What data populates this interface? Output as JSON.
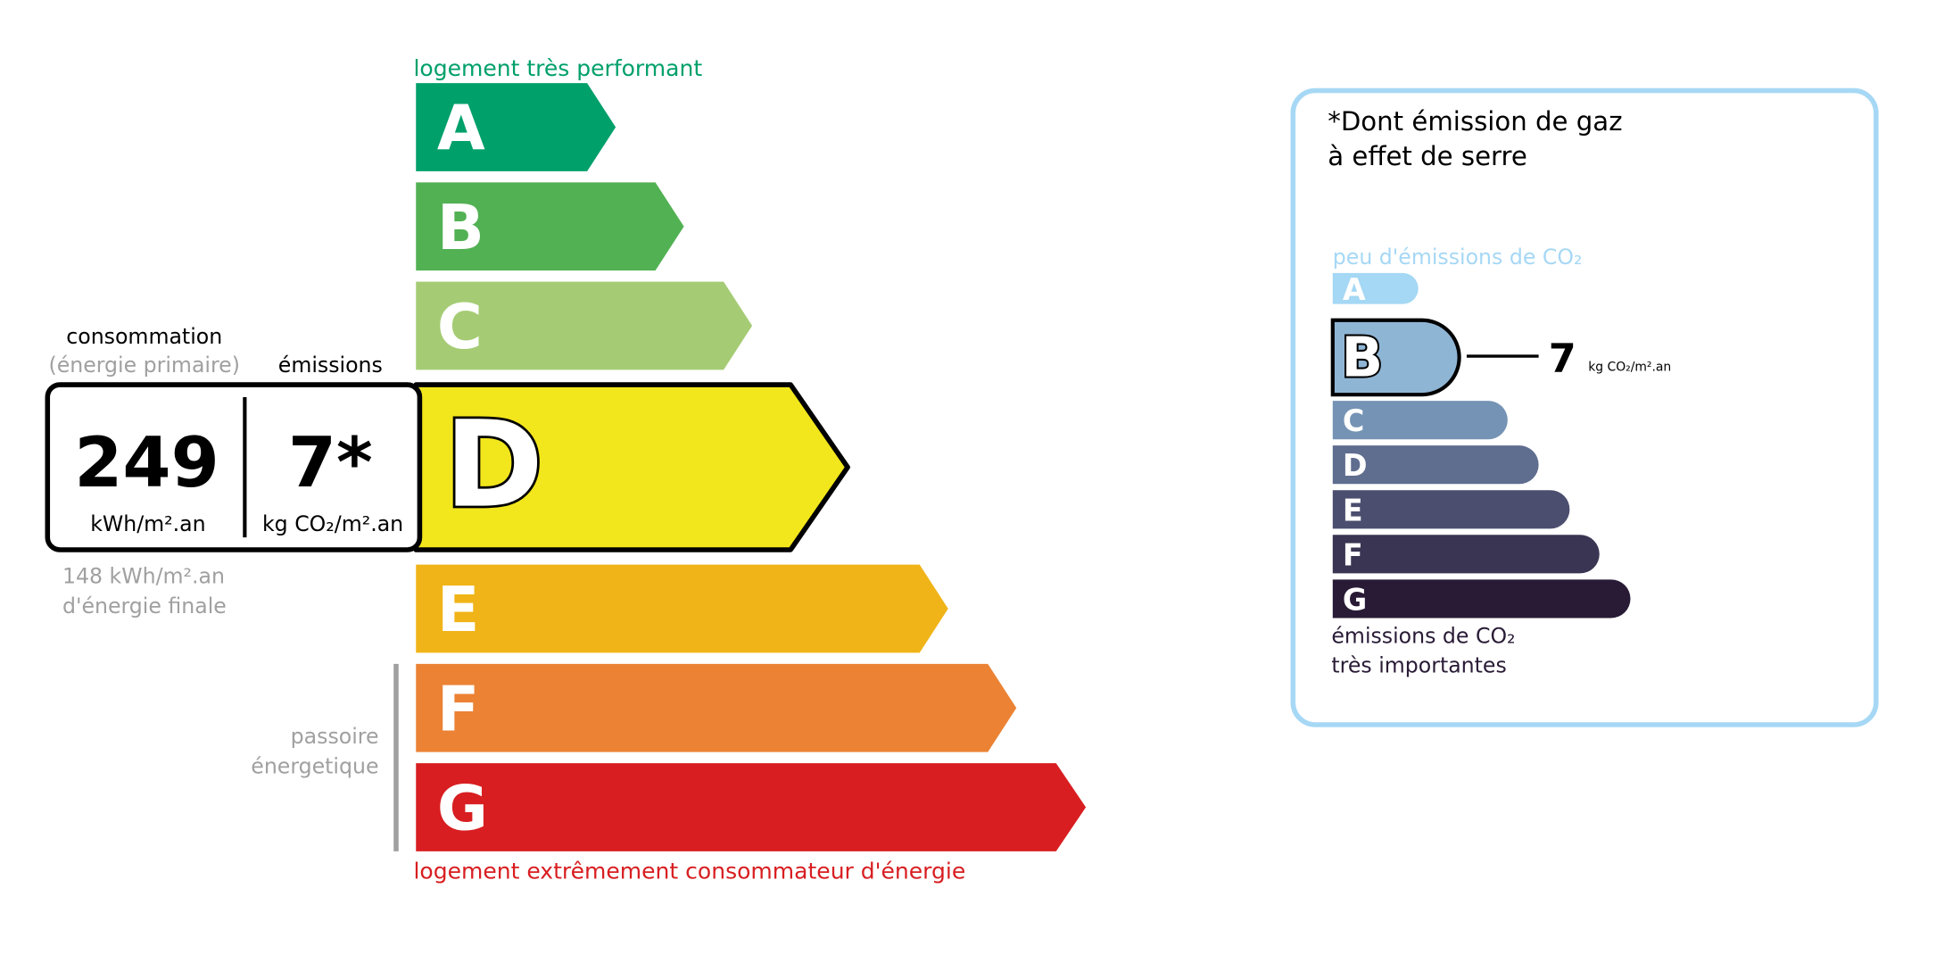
{
  "energy_label": {
    "top_label": "logement très performant",
    "bottom_label": "logement extrêmement consommateur d'énergie",
    "passoire_line1": "passoire",
    "passoire_line2": "énergetique",
    "current_class": "D",
    "classes": [
      {
        "letter": "A",
        "color": "#00a06a"
      },
      {
        "letter": "B",
        "color": "#52b153"
      },
      {
        "letter": "C",
        "color": "#a5cc74"
      },
      {
        "letter": "D",
        "color": "#f2e61c"
      },
      {
        "letter": "E",
        "color": "#f0b418"
      },
      {
        "letter": "F",
        "color": "#eb8234"
      },
      {
        "letter": "G",
        "color": "#d81e21"
      }
    ],
    "consumption_header": "consommation",
    "consumption_subheader": "(énergie primaire)",
    "emissions_header": "émissions",
    "consumption_value": "249",
    "consumption_unit": "kWh/m².an",
    "emissions_value": "7*",
    "emissions_unit": "kg CO₂/m².an",
    "final_energy_value": "148 kWh/m².an",
    "final_energy_label": "d'énergie finale"
  },
  "ges_panel": {
    "title_line1": "*Dont émission de gaz",
    "title_line2": "à effet de serre",
    "top_label": "peu d'émissions de CO₂",
    "bottom_label_line1": "émissions de CO₂",
    "bottom_label_line2": "très importantes",
    "current_class": "B",
    "value": "7",
    "unit": "kg CO₂/m².an",
    "border_color": "#a6d8f5",
    "classes": [
      {
        "letter": "A",
        "color": "#a4d8f4"
      },
      {
        "letter": "B",
        "color": "#8fb5d5"
      },
      {
        "letter": "C",
        "color": "#7593b4"
      },
      {
        "letter": "D",
        "color": "#5f6d8f"
      },
      {
        "letter": "E",
        "color": "#4b4e6e"
      },
      {
        "letter": "F",
        "color": "#393552"
      },
      {
        "letter": "G",
        "color": "#291b36"
      }
    ]
  }
}
